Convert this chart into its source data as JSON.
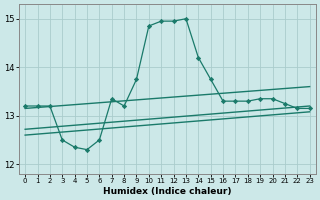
{
  "xlabel": "Humidex (Indice chaleur)",
  "bg_color": "#cce8e8",
  "grid_color": "#aacccc",
  "line_color": "#1a7a6a",
  "xlim": [
    -0.5,
    23.5
  ],
  "ylim": [
    11.8,
    15.3
  ],
  "yticks": [
    12,
    13,
    14,
    15
  ],
  "xticks": [
    0,
    1,
    2,
    3,
    4,
    5,
    6,
    7,
    8,
    9,
    10,
    11,
    12,
    13,
    14,
    15,
    16,
    17,
    18,
    19,
    20,
    21,
    22,
    23
  ],
  "line1_x": [
    0,
    23
  ],
  "line1_y": [
    13.15,
    13.6
  ],
  "line2_x": [
    0,
    23
  ],
  "line2_y": [
    12.72,
    13.2
  ],
  "line3_x": [
    0,
    23
  ],
  "line3_y": [
    12.6,
    13.08
  ],
  "main_x": [
    0,
    1,
    2,
    3,
    4,
    5,
    6,
    7,
    8,
    9,
    10,
    11,
    12,
    13,
    14,
    15,
    16,
    17,
    18,
    19,
    20,
    21,
    22,
    23
  ],
  "main_y": [
    13.2,
    13.2,
    13.2,
    12.5,
    12.35,
    12.3,
    12.5,
    13.35,
    13.2,
    13.75,
    14.85,
    14.95,
    14.95,
    15.0,
    14.2,
    13.75,
    13.3,
    13.3,
    13.3,
    13.35,
    13.35,
    13.25,
    13.15,
    13.15
  ]
}
